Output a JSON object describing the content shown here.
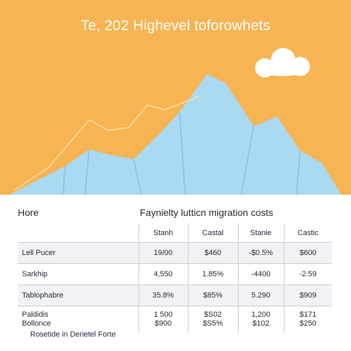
{
  "hero": {
    "title": "Te, 202 Highevel toforowhets",
    "colors": {
      "background": "#f7b452",
      "mountain": "#aad9f2",
      "cloud": "#ffffff",
      "trend_line": "#fbe0a3"
    }
  },
  "section_label": "Hore",
  "footnote": "Rosetide in Derietel Forte",
  "chart_data": {
    "type": "table",
    "title": "Faynielty lutticn migration costs",
    "columns": [
      "",
      "Stanh",
      "Castal",
      "Stanie",
      "Castic"
    ],
    "rows": [
      {
        "label": "Lell Pucer",
        "cells": [
          "19/00",
          "$460",
          "-$0.5%",
          "$600"
        ]
      },
      {
        "label": "Sarkhip",
        "cells": [
          "4,550",
          "1.85%",
          "-4400",
          "-2.59"
        ]
      },
      {
        "label": "Tablophabre",
        "cells": [
          "35.8%",
          "$85%",
          "5.290",
          "$909"
        ]
      },
      {
        "label": "Paldidis\nBollonce",
        "cells": [
          "1 500\n$900",
          "$S02\n$S5%",
          "1,200\n$102",
          "$171\n$250"
        ]
      }
    ],
    "grid": true
  }
}
